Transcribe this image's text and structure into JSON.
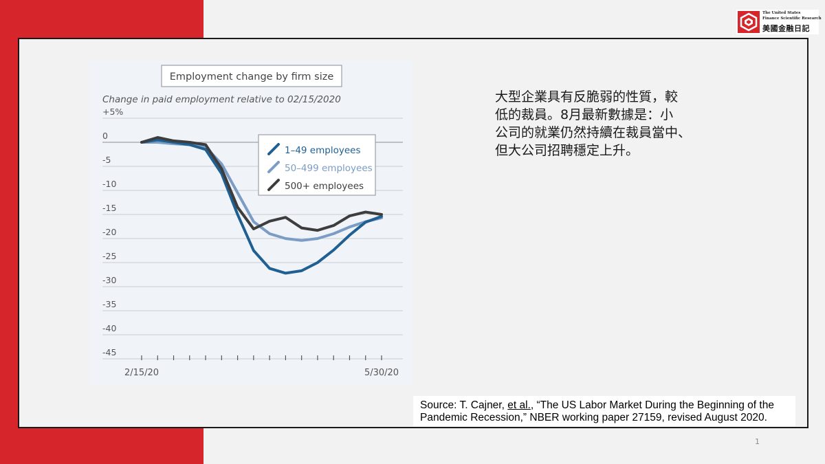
{
  "logo": {
    "line1": "The United States",
    "line2": "Finance Scientific Research",
    "line3": "美國金融日記"
  },
  "description": {
    "lines": [
      "大型企業具有反脆弱的性質，較",
      "低的裁員。8月最新數據是：小",
      "公司的就業仍然持續在裁員當中、",
      "但大公司招聘穩定上升。"
    ]
  },
  "source": {
    "line1_before": "Source: T. Cajner, ",
    "line1_link": "et al.",
    "line1_after": ", “The US Labor Market During the Beginning of the",
    "line2": "Pandemic Recession,” NBER working paper 27159, revised August 2020."
  },
  "page_number": "1",
  "chart_data": {
    "type": "line",
    "title": "Employment change by firm size",
    "ylabel": "Change in paid employment relative to 02/15/2020",
    "ylim": [
      -45,
      5
    ],
    "yticks": [
      5,
      0,
      -5,
      -10,
      -15,
      -20,
      -25,
      -30,
      -35,
      -40,
      -45
    ],
    "ytick_labels": [
      "+5%",
      "0",
      "-5",
      "-10",
      "-15",
      "-20",
      "-25",
      "-30",
      "-35",
      "-40",
      "-45"
    ],
    "x_first_label": "2/15/20",
    "x_last_label": "5/30/20",
    "x_weeks": 16,
    "grid": true,
    "legend_position": "top-right",
    "colors": {
      "small": "#1f5f91",
      "medium": "#7b9cc4",
      "large": "#3d3d3d",
      "grid": "#c8ccd2",
      "axis_text": "#555555"
    },
    "series": [
      {
        "name": "1–49 employees",
        "color": "#1f5f91",
        "values": [
          0,
          0.5,
          0,
          -0.5,
          -1.5,
          -6.5,
          -15,
          -22.5,
          -26.2,
          -27.2,
          -26.7,
          -25,
          -22.4,
          -19.3,
          -16.6,
          -15.4
        ]
      },
      {
        "name": "50–499 employees",
        "color": "#7b9cc4",
        "values": [
          0,
          0,
          -0.3,
          -0.5,
          -1,
          -4.5,
          -10.5,
          -16.5,
          -19,
          -20,
          -20.4,
          -20,
          -19,
          -17.6,
          -16.5,
          -15.7
        ]
      },
      {
        "name": "500+ employees",
        "color": "#3d3d3d",
        "values": [
          0,
          1,
          0.3,
          0,
          -0.5,
          -5.5,
          -13.5,
          -18,
          -16.4,
          -15.6,
          -17.8,
          -18.3,
          -17.3,
          -15.3,
          -14.5,
          -15
        ]
      }
    ]
  }
}
